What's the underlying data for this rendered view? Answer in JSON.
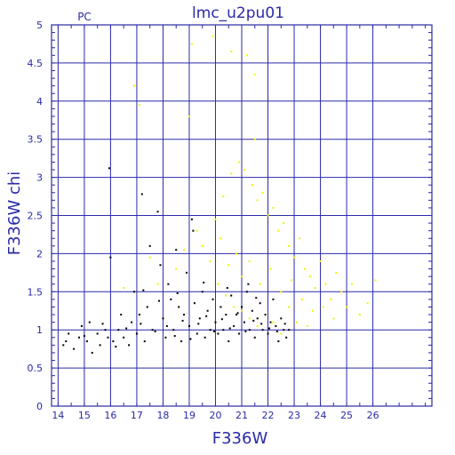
{
  "chart_data": {
    "type": "scatter",
    "title": "lmc_u2pu01",
    "subtitle": "PC",
    "xlabel": "F336W",
    "ylabel": "F336W  chi",
    "xlim": [
      13.75,
      28.25
    ],
    "ylim": [
      0,
      5
    ],
    "xticks": [
      "14",
      "15",
      "16",
      "17",
      "18",
      "19",
      "20",
      "21",
      "22",
      "23",
      "24",
      "25",
      "26"
    ],
    "yticks": [
      "0",
      "0.5",
      "1",
      "1.5",
      "2",
      "2.5",
      "3",
      "3.5",
      "4",
      "4.5",
      "5"
    ],
    "grid": true,
    "colors": {
      "axis": "#2a2aa8",
      "black_series": "#000000",
      "yellow_series": "#f2f200"
    },
    "series": [
      {
        "color": "black",
        "points": [
          [
            14.2,
            0.8
          ],
          [
            14.4,
            0.95
          ],
          [
            14.6,
            0.75
          ],
          [
            14.8,
            0.9
          ],
          [
            14.9,
            1.05
          ],
          [
            15.1,
            0.85
          ],
          [
            15.2,
            1.1
          ],
          [
            15.3,
            0.7
          ],
          [
            15.5,
            0.95
          ],
          [
            15.6,
            0.8
          ],
          [
            15.8,
            1.0
          ],
          [
            15.9,
            0.9
          ],
          [
            15.95,
            3.12
          ],
          [
            16.0,
            1.95
          ],
          [
            16.1,
            0.85
          ],
          [
            16.3,
            1.0
          ],
          [
            16.4,
            1.2
          ],
          [
            16.5,
            0.9
          ],
          [
            16.7,
            0.8
          ],
          [
            16.8,
            1.1
          ],
          [
            16.9,
            1.5
          ],
          [
            17.0,
            0.95
          ],
          [
            17.1,
            1.2
          ],
          [
            17.2,
            2.78
          ],
          [
            17.3,
            0.85
          ],
          [
            17.4,
            1.3
          ],
          [
            17.5,
            2.1
          ],
          [
            17.6,
            1.0
          ],
          [
            17.8,
            2.55
          ],
          [
            17.9,
            1.85
          ],
          [
            18.0,
            1.15
          ],
          [
            18.1,
            0.9
          ],
          [
            18.2,
            1.6
          ],
          [
            18.3,
            1.4
          ],
          [
            18.4,
            1.0
          ],
          [
            18.5,
            2.05
          ],
          [
            18.6,
            1.3
          ],
          [
            18.7,
            0.85
          ],
          [
            18.8,
            1.2
          ],
          [
            18.9,
            1.75
          ],
          [
            19.0,
            1.05
          ],
          [
            19.1,
            2.45
          ],
          [
            19.15,
            2.3
          ],
          [
            19.2,
            1.35
          ],
          [
            19.3,
            0.95
          ],
          [
            19.4,
            1.15
          ],
          [
            19.5,
            1.5
          ],
          [
            19.6,
            0.9
          ],
          [
            19.7,
            1.25
          ],
          [
            19.8,
            1.0
          ],
          [
            19.9,
            1.4
          ],
          [
            20.0,
            1.1
          ],
          [
            20.1,
            0.95
          ],
          [
            20.2,
            1.3
          ],
          [
            20.3,
            1.0
          ],
          [
            20.4,
            1.2
          ],
          [
            20.5,
            0.85
          ],
          [
            20.6,
            1.45
          ],
          [
            20.7,
            1.05
          ],
          [
            20.8,
            1.2
          ],
          [
            20.9,
            0.95
          ],
          [
            21.0,
            1.3
          ],
          [
            21.1,
            1.1
          ],
          [
            21.2,
            1.5
          ],
          [
            21.3,
            1.0
          ],
          [
            21.4,
            1.25
          ],
          [
            21.5,
            0.9
          ],
          [
            21.6,
            1.15
          ],
          [
            21.7,
            1.35
          ],
          [
            21.8,
            1.0
          ],
          [
            21.9,
            1.2
          ],
          [
            22.0,
            0.95
          ],
          [
            22.1,
            1.1
          ],
          [
            22.2,
            1.4
          ],
          [
            22.3,
            1.05
          ],
          [
            22.4,
            0.85
          ],
          [
            22.5,
            1.15
          ],
          [
            22.6,
            1.0
          ],
          [
            22.7,
            0.9
          ],
          [
            22.8,
            1.0
          ],
          [
            14.3,
            0.85
          ],
          [
            15.0,
            0.92
          ],
          [
            15.7,
            1.08
          ],
          [
            16.2,
            0.78
          ],
          [
            16.6,
            1.02
          ],
          [
            17.15,
            1.08
          ],
          [
            17.7,
            0.98
          ],
          [
            18.15,
            1.05
          ],
          [
            18.45,
            0.92
          ],
          [
            18.75,
            1.12
          ],
          [
            19.05,
            0.88
          ],
          [
            19.35,
            1.08
          ],
          [
            19.65,
            1.18
          ],
          [
            19.95,
            0.98
          ],
          [
            20.25,
            1.14
          ],
          [
            20.55,
            1.02
          ],
          [
            20.85,
            1.22
          ],
          [
            21.15,
            0.98
          ],
          [
            21.45,
            1.12
          ],
          [
            21.75,
            1.08
          ],
          [
            22.05,
            1.02
          ],
          [
            22.35,
            0.98
          ],
          [
            22.65,
            1.08
          ],
          [
            21.25,
            1.6
          ],
          [
            21.55,
            1.42
          ],
          [
            20.45,
            1.55
          ],
          [
            19.55,
            1.62
          ],
          [
            18.55,
            1.48
          ],
          [
            17.85,
            1.38
          ],
          [
            17.25,
            1.52
          ]
        ]
      },
      {
        "color": "yellow",
        "points": [
          [
            16.9,
            4.2
          ],
          [
            17.1,
            3.95
          ],
          [
            19.1,
            4.75
          ],
          [
            19.9,
            4.85
          ],
          [
            20.6,
            4.65
          ],
          [
            21.2,
            4.6
          ],
          [
            21.5,
            4.35
          ],
          [
            19.0,
            3.8
          ],
          [
            21.5,
            3.5
          ],
          [
            20.3,
            2.75
          ],
          [
            20.6,
            3.05
          ],
          [
            20.9,
            3.2
          ],
          [
            21.1,
            3.1
          ],
          [
            21.4,
            2.9
          ],
          [
            21.6,
            2.7
          ],
          [
            21.8,
            2.8
          ],
          [
            22.0,
            2.5
          ],
          [
            22.2,
            2.6
          ],
          [
            22.4,
            2.3
          ],
          [
            22.6,
            2.4
          ],
          [
            22.8,
            2.1
          ],
          [
            23.0,
            1.95
          ],
          [
            23.2,
            2.2
          ],
          [
            23.4,
            1.8
          ],
          [
            23.6,
            1.7
          ],
          [
            23.8,
            1.55
          ],
          [
            24.0,
            1.9
          ],
          [
            24.2,
            1.6
          ],
          [
            24.4,
            1.4
          ],
          [
            24.6,
            1.75
          ],
          [
            24.8,
            1.5
          ],
          [
            25.0,
            1.3
          ],
          [
            25.2,
            1.6
          ],
          [
            25.5,
            1.2
          ],
          [
            25.8,
            1.35
          ],
          [
            26.1,
            1.65
          ],
          [
            20.2,
            2.2
          ],
          [
            20.5,
            1.85
          ],
          [
            20.8,
            2.0
          ],
          [
            21.0,
            1.7
          ],
          [
            21.3,
            1.9
          ],
          [
            21.7,
            1.6
          ],
          [
            22.1,
            1.8
          ],
          [
            22.5,
            1.5
          ],
          [
            22.9,
            1.65
          ],
          [
            23.3,
            1.4
          ],
          [
            23.7,
            1.25
          ],
          [
            24.1,
            1.3
          ],
          [
            24.5,
            1.15
          ],
          [
            19.5,
            2.1
          ],
          [
            19.8,
            1.9
          ],
          [
            20.1,
            1.6
          ],
          [
            20.4,
            1.45
          ],
          [
            20.7,
            1.3
          ],
          [
            21.0,
            1.25
          ],
          [
            21.3,
            1.15
          ],
          [
            21.6,
            1.05
          ],
          [
            21.9,
            1.2
          ],
          [
            22.2,
            1.1
          ],
          [
            22.5,
            0.95
          ],
          [
            22.8,
            1.3
          ],
          [
            23.1,
            1.1
          ],
          [
            23.5,
            1.05
          ],
          [
            18.5,
            1.8
          ],
          [
            18.8,
            2.05
          ],
          [
            17.8,
            1.6
          ],
          [
            17.5,
            1.95
          ],
          [
            16.5,
            1.55
          ],
          [
            19.3,
            2.3
          ],
          [
            20.0,
            2.45
          ]
        ]
      }
    ]
  }
}
